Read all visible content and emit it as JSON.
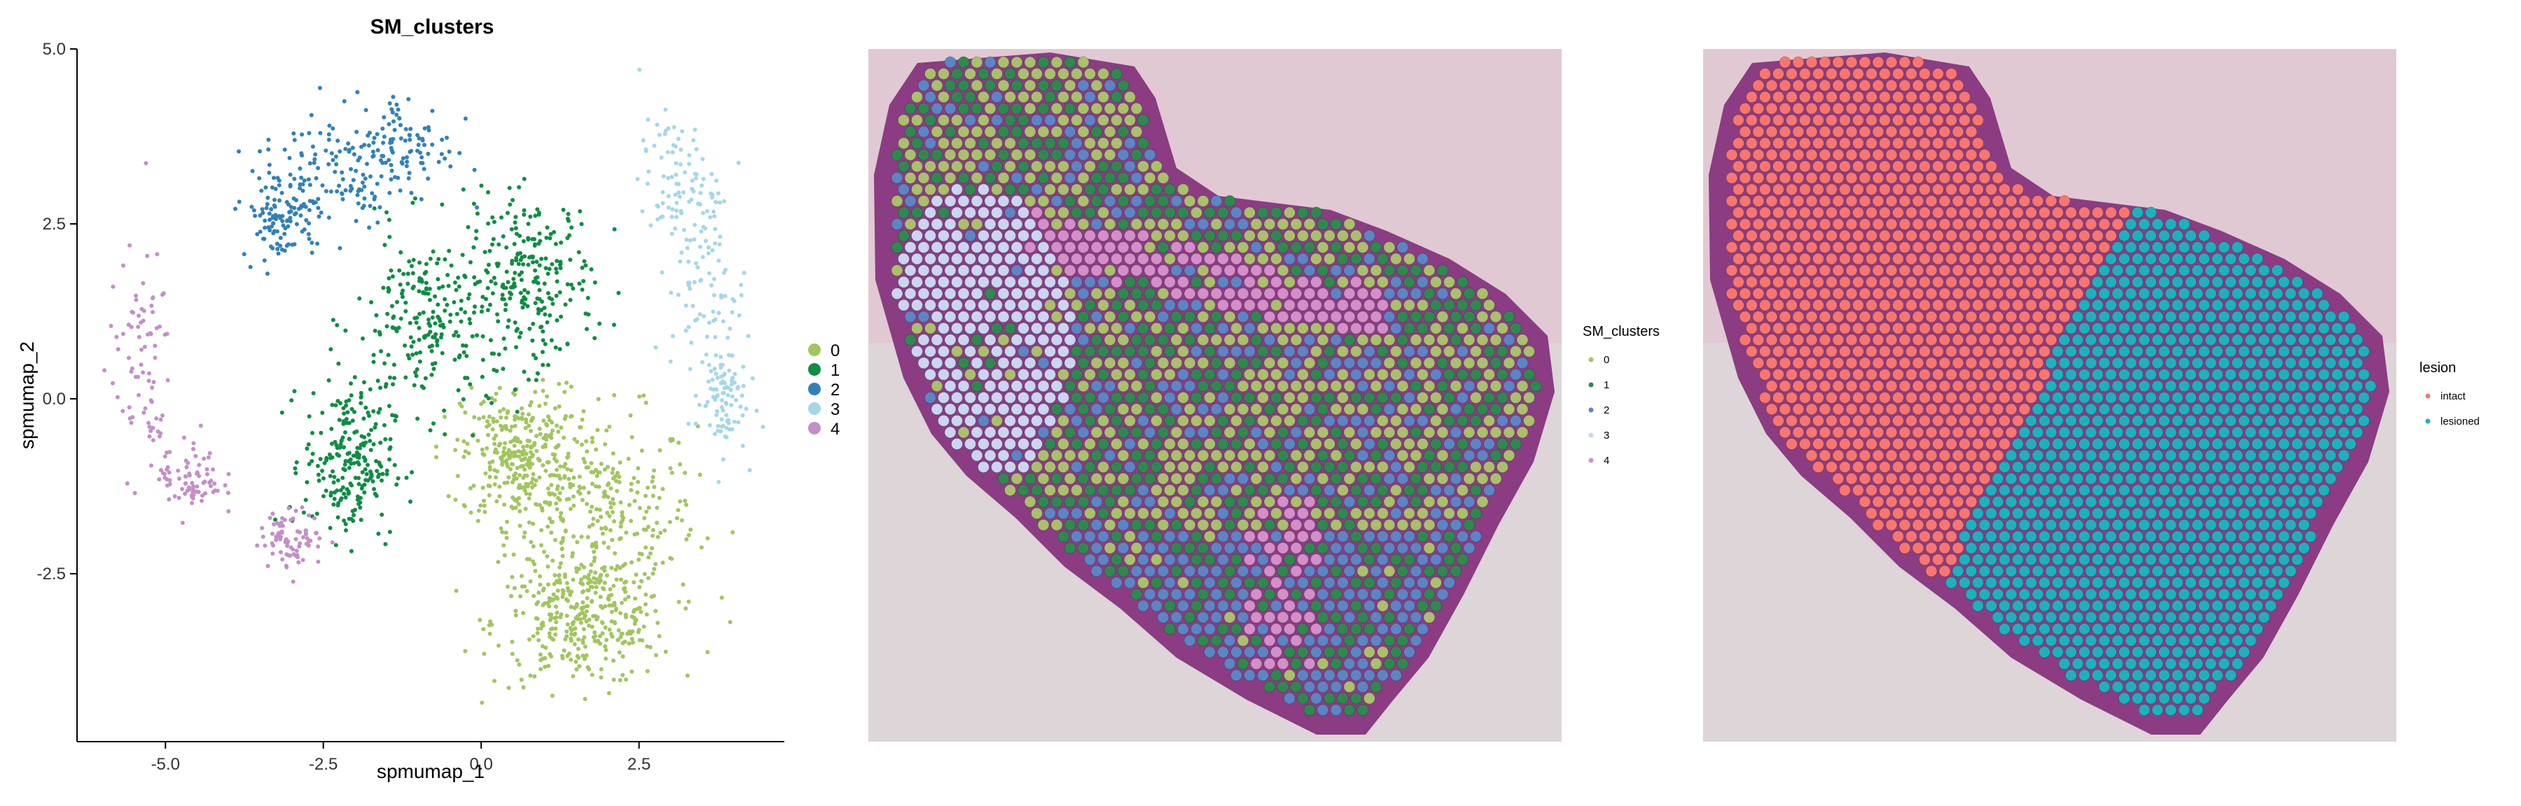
{
  "chart_data": [
    {
      "type": "scatter",
      "title": "SM_clusters",
      "xlabel": "spmumap_1",
      "ylabel": "spmumap_2",
      "xlim": [
        -6.4,
        4.8
      ],
      "ylim": [
        -4.9,
        5.0
      ],
      "xticks": [
        -5.0,
        -2.5,
        0.0,
        2.5
      ],
      "xtick_labels": [
        "-5.0",
        "-2.5",
        "0.0",
        "2.5"
      ],
      "yticks": [
        -2.5,
        0.0,
        2.5,
        5.0
      ],
      "ytick_labels": [
        "-2.5",
        "0.0",
        "2.5",
        "5.0"
      ],
      "grid": false,
      "legend_position": "right",
      "series": [
        {
          "name": "0",
          "color": "#a1c65e",
          "regions": [
            [
              1.9,
              -1.7,
              1.5,
              1.5
            ],
            [
              1.6,
              -3.2,
              1.4,
              0.9
            ],
            [
              0.6,
              -0.8,
              0.9,
              1.0
            ]
          ],
          "approx_points": 950
        },
        {
          "name": "1",
          "color": "#0e8d44",
          "regions": [
            [
              0.8,
              1.7,
              1.0,
              1.2
            ],
            [
              -0.8,
              1.1,
              1.2,
              1.3
            ],
            [
              -2.1,
              -0.9,
              0.7,
              1.1
            ]
          ],
          "approx_points": 700
        },
        {
          "name": "2",
          "color": "#2f82b8",
          "regions": [
            [
              -2.4,
              3.3,
              1.1,
              0.9
            ],
            [
              -1.2,
              3.6,
              0.8,
              0.8
            ],
            [
              -3.2,
              2.6,
              0.6,
              0.6
            ]
          ],
          "approx_points": 320
        },
        {
          "name": "3",
          "color": "#a5d7e8",
          "regions": [
            [
              3.6,
              1.6,
              0.6,
              1.3
            ],
            [
              3.1,
              3.1,
              0.6,
              0.9
            ],
            [
              3.8,
              0.0,
              0.4,
              0.8
            ]
          ],
          "approx_points": 260
        },
        {
          "name": "4",
          "color": "#c38fc8",
          "regions": [
            [
              -5.4,
              0.5,
              0.5,
              1.6
            ],
            [
              -4.6,
              -1.1,
              0.5,
              0.6
            ],
            [
              -3.0,
              -2.0,
              0.5,
              0.4
            ]
          ],
          "approx_points": 240
        }
      ]
    },
    {
      "type": "scatter",
      "title": "",
      "legend_title": "SM_clusters",
      "legend_position": "right",
      "background": "H&E tissue image",
      "categories": [
        "0",
        "1",
        "2",
        "3",
        "4"
      ],
      "colors": {
        "0": "#a9c16a",
        "1": "#2d8a4e",
        "2": "#5a86c4",
        "3": "#c9d6ef",
        "4": "#d38fc8",
        "tissue": "#8b3c83"
      }
    },
    {
      "type": "scatter",
      "title": "",
      "legend_title": "lesion",
      "legend_position": "right",
      "background": "H&E tissue image",
      "categories": [
        "intact",
        "lesioned"
      ],
      "colors": {
        "intact": "#f8766d",
        "lesioned": "#1ab3bd",
        "tissue": "#8b3c83"
      }
    }
  ]
}
